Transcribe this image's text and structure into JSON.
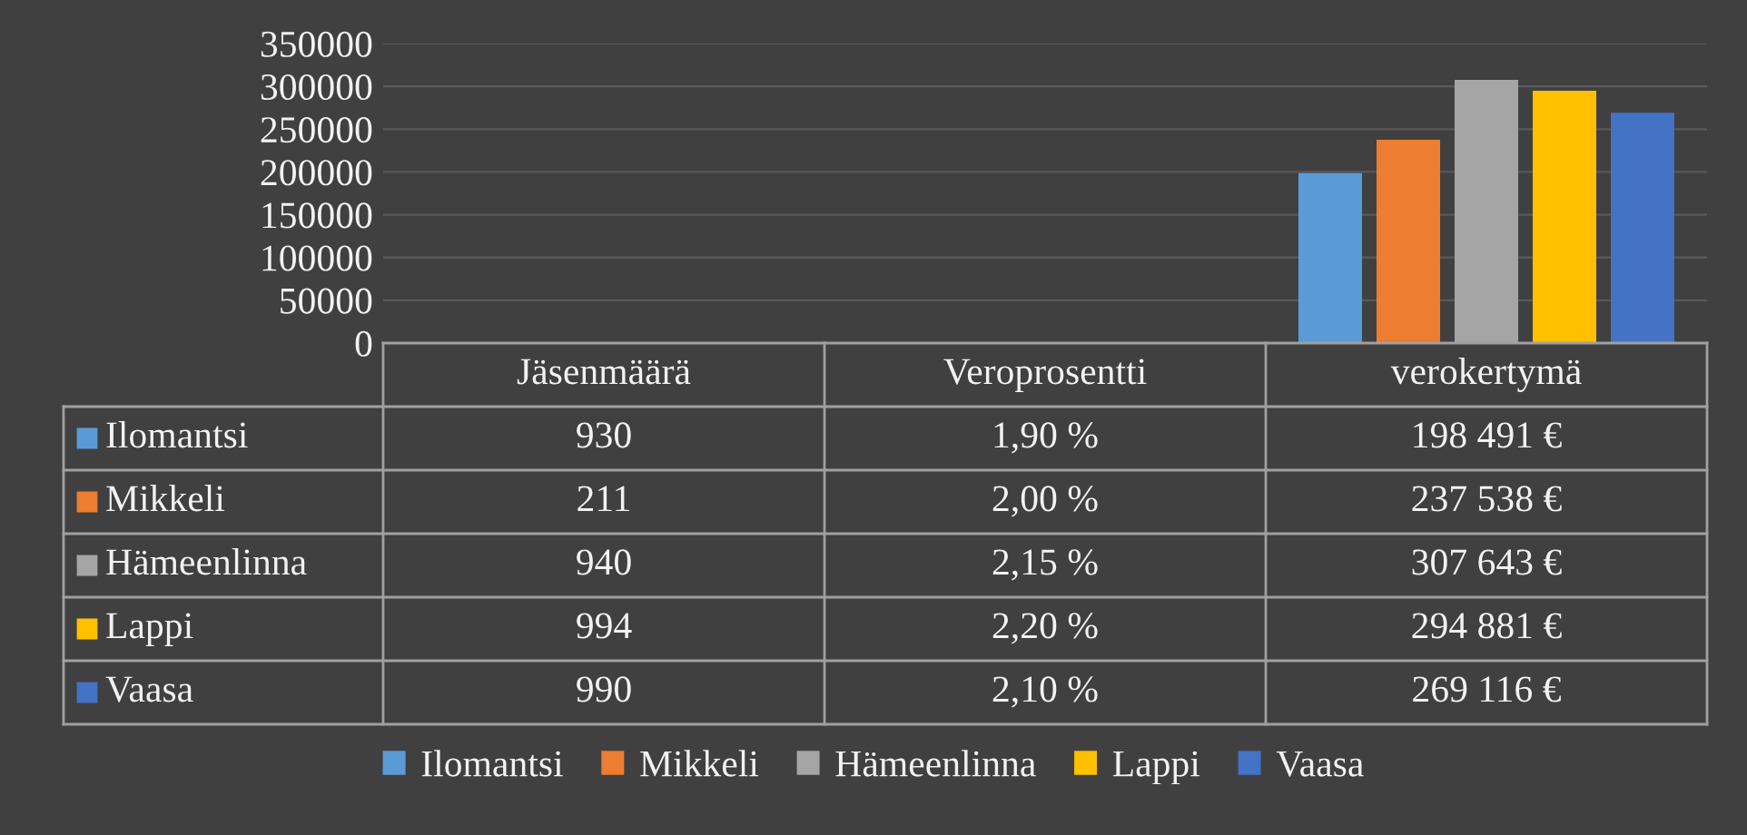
{
  "chart_data": {
    "type": "bar",
    "categories": [
      "Jäsenmäärä",
      "Veroprosentti",
      "verokertymä"
    ],
    "series": [
      {
        "name": "Ilomantsi",
        "color": "#5b9bd5",
        "values": [
          930,
          1.9,
          198491
        ],
        "value_labels": [
          "930",
          "1,90 %",
          "198 491 €"
        ]
      },
      {
        "name": "Mikkeli",
        "color": "#ed7d31",
        "values": [
          211,
          2.0,
          237538
        ],
        "value_labels": [
          "211",
          "2,00 %",
          "237 538 €"
        ]
      },
      {
        "name": "Hämeenlinna",
        "color": "#a5a5a5",
        "values": [
          940,
          2.15,
          307643
        ],
        "value_labels": [
          "940",
          "2,15 %",
          "307 643 €"
        ]
      },
      {
        "name": "Lappi",
        "color": "#ffc000",
        "values": [
          994,
          2.2,
          294881
        ],
        "value_labels": [
          "994",
          "2,20 %",
          "294 881 €"
        ]
      },
      {
        "name": "Vaasa",
        "color": "#4472c4",
        "values": [
          990,
          2.1,
          269116
        ],
        "value_labels": [
          "990",
          "2,10 %",
          "269 116 €"
        ]
      }
    ],
    "ylim": [
      0,
      350000
    ],
    "yticks": [
      0,
      50000,
      100000,
      150000,
      200000,
      250000,
      300000,
      350000
    ],
    "grid": "y",
    "legend": "bottom"
  }
}
